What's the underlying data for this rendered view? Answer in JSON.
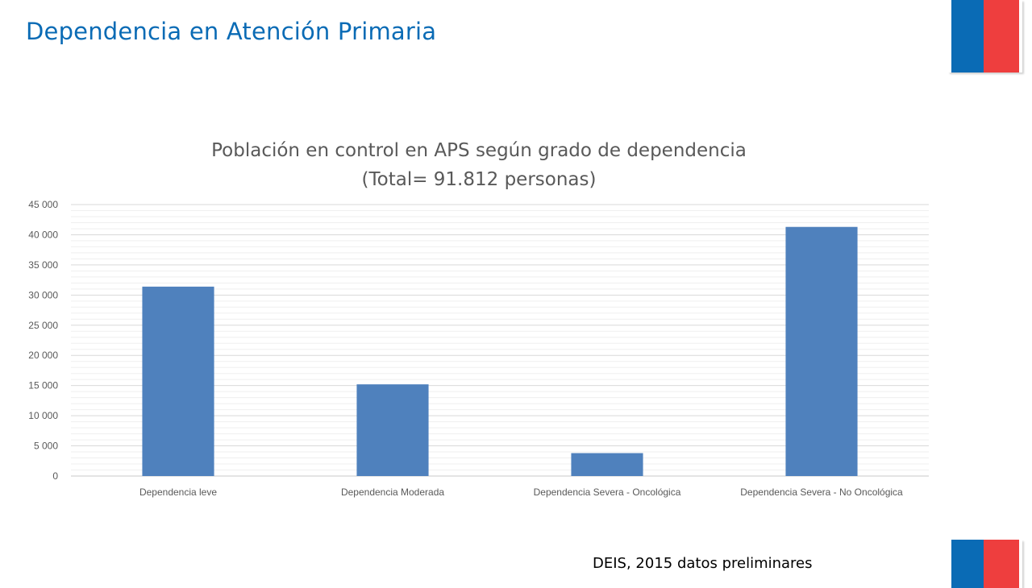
{
  "slide": {
    "title": "Dependencia en Atención Primaria",
    "source": "DEIS, 2015 datos preliminares"
  },
  "colors": {
    "title": "#0a6bb5",
    "flag_blue": "#0a6bb5",
    "flag_red": "#ee3e3e",
    "bar": "#4f81bd"
  },
  "chart_data": {
    "type": "bar",
    "title": "Población en control en APS según grado de dependencia",
    "subtitle": "(Total= 91.812 personas)",
    "categories": [
      "Dependencia leve",
      "Dependencia Moderada",
      "Dependencia Severa - Oncológica",
      "Dependencia Severa - No Oncológica"
    ],
    "values": [
      31400,
      15200,
      3800,
      41300
    ],
    "ylim": [
      0,
      45000
    ],
    "yticks": [
      0,
      5000,
      10000,
      15000,
      20000,
      25000,
      30000,
      35000,
      40000,
      45000
    ],
    "ytick_labels": [
      "0",
      "5 000",
      "10 000",
      "15 000",
      "20 000",
      "25 000",
      "30 000",
      "35 000",
      "40 000",
      "45 000"
    ],
    "grid": true,
    "legend": "none"
  }
}
